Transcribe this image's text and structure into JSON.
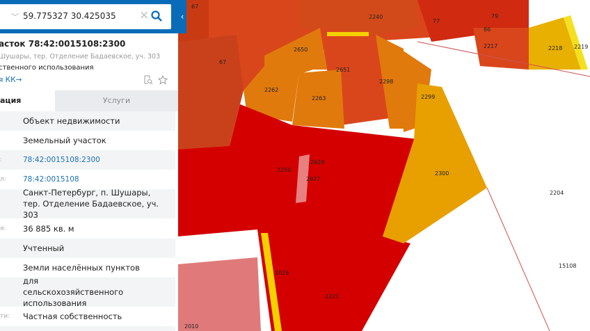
{
  "search": {
    "value": "59.775327 30.425035"
  },
  "object": {
    "title": "асток 78:42:0015108:2300",
    "address": "Шушары, тер. Отделение Бадаевское, уч. 303",
    "use": "ственного использования",
    "link": "я КК→"
  },
  "tabs": [
    {
      "label": "ация",
      "active": true
    },
    {
      "label": "Услуги",
      "active": false
    }
  ],
  "rows": [
    {
      "label": "",
      "value": "Объект недвижимости",
      "link": false
    },
    {
      "label": "",
      "value": "Земельный участок",
      "link": false
    },
    {
      "label": ":",
      "value": "78:42:0015108:2300",
      "link": true
    },
    {
      "label": "л:",
      "value": "78:42:0015108",
      "link": true
    },
    {
      "label": "",
      "value": "Санкт-Петербург, п. Шушары, тер. Отделение Бадаевское, уч. 303",
      "link": false
    },
    {
      "label": "я:",
      "value": "36 885 кв. м",
      "link": false
    },
    {
      "label": "",
      "value": "Учтенный",
      "link": false
    },
    {
      "label": "",
      "value": "Земли населённых пунктов",
      "link": false
    },
    {
      "label": "",
      "value": "для сельскохозяйственного использования",
      "link": false
    },
    {
      "label": "ти:",
      "value": "Частная собственность",
      "link": false
    }
  ],
  "map": {
    "parcels": [
      "67",
      "2240",
      "77",
      "79",
      "86",
      "2217",
      "2218",
      "2219",
      "2650",
      "67",
      "2651",
      "2298",
      "2262",
      "2263",
      "2299",
      "2250",
      "2627",
      "2628",
      "2300",
      "2204",
      "15108",
      "2221",
      "2010",
      "2026"
    ]
  },
  "colors": {
    "header": "#0a6cb8",
    "link": "#1a6fb5",
    "selected": "#e8a000",
    "parcel_red": "#d40000",
    "parcel_orange": "#d9461c"
  }
}
